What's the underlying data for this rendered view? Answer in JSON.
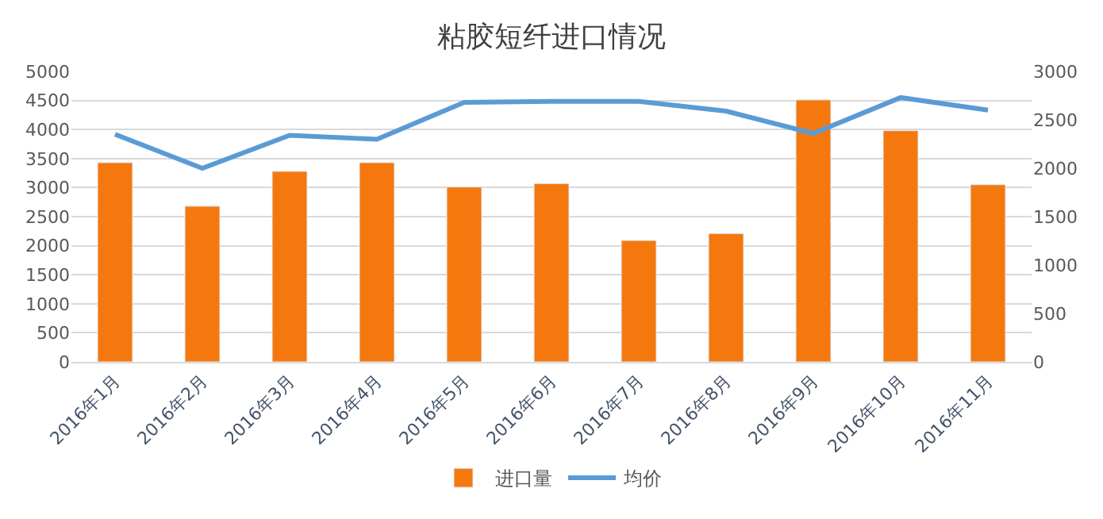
{
  "chart_data": {
    "type": "bar",
    "title": "粘胶短纤进口情况",
    "categories": [
      "2016年1月",
      "2016年2月",
      "2016年3月",
      "2016年4月",
      "2016年5月",
      "2016年6月",
      "2016年7月",
      "2016年8月",
      "2016年9月",
      "2016年10月",
      "2016年11月"
    ],
    "series": [
      {
        "name": "进口量",
        "color": "#f5780f",
        "values": [
          3430,
          2680,
          3280,
          3430,
          3010,
          3070,
          2090,
          2210,
          4510,
          3980,
          3050
        ]
      },
      {
        "name": "均价",
        "type": "line",
        "axis": "y2",
        "color": "#5b9bd5",
        "values": [
          2350,
          2000,
          2340,
          2300,
          2680,
          2690,
          2690,
          2590,
          2360,
          2730,
          2600
        ]
      }
    ],
    "ylim": [
      0,
      5000
    ],
    "yticks": [
      0,
      500,
      1000,
      1500,
      2000,
      2500,
      3000,
      3500,
      4000,
      4500,
      5000
    ],
    "y2lim": [
      0,
      3000
    ],
    "y2ticks": [
      0,
      500,
      1000,
      1500,
      2000,
      2500,
      3000
    ],
    "grid": "y",
    "legend": "bottom",
    "marker": "none",
    "line_style": "solid"
  }
}
